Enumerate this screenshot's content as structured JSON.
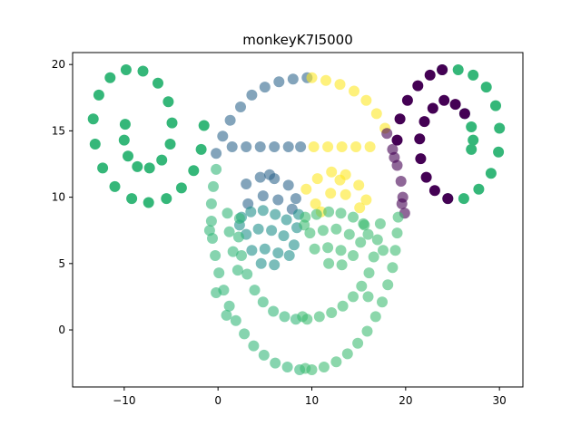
{
  "chart_data": {
    "type": "scatter",
    "title": "monkeyK7I5000",
    "xlabel": "",
    "ylabel": "",
    "xlim": [
      -15.5,
      32.5
    ],
    "ylim": [
      -4.3,
      20.9
    ],
    "xticks": [
      -10,
      0,
      10,
      20,
      30
    ],
    "yticks": [
      0,
      5,
      10,
      15,
      20
    ],
    "grid": false,
    "legend": "none",
    "colors": {
      "purple": "#440154",
      "blue": "#31688e",
      "teal": "#21918c",
      "green": "#35b779",
      "lightgreen": "#3fbc73",
      "yellow": "#fde725"
    },
    "series": [
      {
        "color_key": "green",
        "alpha": 1,
        "points": [
          [
            -1.5,
            15.4
          ],
          [
            -1.8,
            13.6
          ],
          [
            -2.6,
            12.0
          ],
          [
            -3.9,
            10.7
          ],
          [
            -5.5,
            9.9
          ],
          [
            -7.4,
            9.6
          ],
          [
            -9.2,
            9.9
          ],
          [
            -11.0,
            10.8
          ],
          [
            -12.3,
            12.2
          ],
          [
            -13.1,
            14.0
          ],
          [
            -13.3,
            15.9
          ],
          [
            -12.7,
            17.7
          ],
          [
            -11.5,
            19.0
          ],
          [
            -9.8,
            19.6
          ],
          [
            -8.0,
            19.5
          ],
          [
            -6.4,
            18.6
          ],
          [
            -5.3,
            17.2
          ],
          [
            -4.9,
            15.6
          ],
          [
            -5.1,
            14.0
          ],
          [
            -6.0,
            12.8
          ],
          [
            -7.3,
            12.2
          ],
          [
            -8.6,
            12.3
          ],
          [
            -9.6,
            13.1
          ],
          [
            -10.0,
            14.3
          ],
          [
            -9.9,
            15.5
          ],
          [
            23.9,
            19.6
          ],
          [
            25.6,
            19.6
          ],
          [
            27.2,
            19.2
          ],
          [
            28.6,
            18.3
          ],
          [
            29.6,
            16.9
          ],
          [
            30.0,
            15.2
          ],
          [
            29.9,
            13.4
          ],
          [
            29.1,
            11.8
          ],
          [
            27.8,
            10.6
          ],
          [
            26.2,
            9.9
          ],
          [
            24.5,
            9.9
          ],
          [
            26.3,
            16.3
          ],
          [
            27.0,
            15.3
          ],
          [
            27.2,
            14.3
          ],
          [
            27.0,
            13.6
          ]
        ]
      },
      {
        "color_key": "purple",
        "alpha": 1,
        "points": [
          [
            19.1,
            14.3
          ],
          [
            19.4,
            15.9
          ],
          [
            20.2,
            17.3
          ],
          [
            21.3,
            18.4
          ],
          [
            22.6,
            19.2
          ],
          [
            23.9,
            19.6
          ],
          [
            24.5,
            9.9
          ],
          [
            23.1,
            10.5
          ],
          [
            22.2,
            11.5
          ],
          [
            21.6,
            12.9
          ],
          [
            21.5,
            14.4
          ],
          [
            22.0,
            15.7
          ],
          [
            22.9,
            16.7
          ],
          [
            24.1,
            17.3
          ],
          [
            25.3,
            17.0
          ],
          [
            26.3,
            16.3
          ]
        ]
      },
      {
        "color_key": "blue",
        "alpha": 0.6,
        "points": [
          [
            9.5,
            19.0
          ],
          [
            8.0,
            18.9
          ],
          [
            6.5,
            18.7
          ],
          [
            5.0,
            18.3
          ],
          [
            3.6,
            17.7
          ],
          [
            2.4,
            16.8
          ],
          [
            1.3,
            15.8
          ],
          [
            0.5,
            14.6
          ],
          [
            -0.2,
            13.3
          ],
          [
            1.5,
            13.8
          ],
          [
            3.0,
            13.8
          ],
          [
            4.5,
            13.8
          ],
          [
            6.0,
            13.8
          ],
          [
            7.5,
            13.8
          ],
          [
            8.8,
            13.8
          ],
          [
            3.0,
            11.0
          ],
          [
            4.5,
            11.5
          ],
          [
            6.0,
            11.4
          ],
          [
            7.5,
            10.9
          ],
          [
            8.3,
            9.9
          ],
          [
            3.2,
            9.5
          ],
          [
            4.8,
            10.1
          ],
          [
            6.4,
            9.8
          ],
          [
            7.9,
            9.1
          ],
          [
            5.5,
            11.7
          ]
        ]
      },
      {
        "color_key": "yellow",
        "alpha": 0.6,
        "points": [
          [
            10.0,
            19.0
          ],
          [
            11.5,
            18.8
          ],
          [
            13.0,
            18.5
          ],
          [
            14.5,
            18.0
          ],
          [
            15.8,
            17.3
          ],
          [
            16.9,
            16.3
          ],
          [
            17.8,
            15.2
          ],
          [
            10.2,
            13.8
          ],
          [
            11.7,
            13.8
          ],
          [
            13.2,
            13.8
          ],
          [
            14.7,
            13.8
          ],
          [
            16.2,
            13.8
          ],
          [
            10.6,
            11.4
          ],
          [
            12.1,
            11.9
          ],
          [
            13.6,
            11.7
          ],
          [
            15.0,
            10.9
          ],
          [
            15.8,
            9.8
          ],
          [
            10.4,
            9.5
          ],
          [
            12.0,
            10.3
          ],
          [
            13.6,
            10.2
          ],
          [
            15.1,
            9.2
          ],
          [
            9.4,
            10.6
          ],
          [
            11.0,
            8.9
          ],
          [
            13.0,
            11.3
          ]
        ]
      },
      {
        "color_key": "purple",
        "alpha": 0.6,
        "points": [
          [
            18.0,
            14.8
          ],
          [
            18.6,
            13.6
          ],
          [
            19.1,
            12.4
          ],
          [
            19.5,
            11.2
          ],
          [
            19.7,
            10.0
          ],
          [
            19.9,
            8.8
          ],
          [
            19.6,
            9.5
          ],
          [
            18.8,
            13.0
          ]
        ]
      },
      {
        "color_key": "teal",
        "alpha": 0.6,
        "points": [
          [
            2.5,
            8.5
          ],
          [
            3.5,
            8.9
          ],
          [
            4.8,
            9.0
          ],
          [
            6.1,
            8.7
          ],
          [
            7.3,
            8.3
          ],
          [
            8.4,
            7.7
          ],
          [
            3.0,
            7.2
          ],
          [
            4.3,
            7.6
          ],
          [
            5.7,
            7.5
          ],
          [
            7.0,
            7.1
          ],
          [
            8.1,
            6.4
          ],
          [
            3.6,
            6.0
          ],
          [
            5.0,
            6.1
          ],
          [
            6.4,
            5.8
          ],
          [
            7.6,
            5.6
          ],
          [
            4.6,
            5.0
          ],
          [
            6.0,
            4.9
          ],
          [
            2.3,
            7.9
          ],
          [
            8.6,
            8.7
          ]
        ]
      },
      {
        "color_key": "lightgreen",
        "alpha": 0.6,
        "points": [
          [
            9.3,
            8.5
          ],
          [
            10.5,
            8.7
          ],
          [
            11.8,
            8.9
          ],
          [
            13.1,
            8.8
          ],
          [
            14.4,
            8.5
          ],
          [
            15.5,
            8.0
          ],
          [
            16.0,
            7.2
          ],
          [
            9.8,
            7.3
          ],
          [
            11.2,
            7.5
          ],
          [
            12.6,
            7.6
          ],
          [
            14.0,
            7.2
          ],
          [
            15.2,
            6.6
          ],
          [
            10.3,
            6.1
          ],
          [
            11.7,
            6.2
          ],
          [
            13.1,
            6.0
          ],
          [
            14.4,
            5.6
          ],
          [
            11.8,
            5.0
          ],
          [
            13.2,
            4.9
          ],
          [
            15.6,
            7.9
          ],
          [
            9.2,
            7.9
          ]
        ]
      },
      {
        "color_key": "green",
        "alpha": 0.6,
        "points": [
          [
            -0.2,
            12.1
          ],
          [
            -0.5,
            10.8
          ],
          [
            -0.7,
            9.5
          ],
          [
            -0.7,
            8.2
          ],
          [
            -0.6,
            6.9
          ],
          [
            -0.3,
            5.6
          ],
          [
            0.1,
            4.3
          ],
          [
            0.6,
            3.0
          ],
          [
            1.2,
            1.8
          ],
          [
            1.9,
            0.7
          ],
          [
            2.8,
            -0.3
          ],
          [
            3.8,
            -1.2
          ],
          [
            4.9,
            -1.9
          ],
          [
            6.1,
            -2.5
          ],
          [
            7.4,
            -2.8
          ],
          [
            8.7,
            -3.0
          ],
          [
            2.3,
            8.4
          ],
          [
            2.2,
            7.0
          ],
          [
            2.5,
            5.6
          ],
          [
            3.1,
            4.2
          ],
          [
            3.9,
            3.0
          ],
          [
            4.8,
            2.1
          ],
          [
            5.9,
            1.4
          ],
          [
            7.1,
            1.0
          ],
          [
            8.3,
            0.8
          ],
          [
            1.0,
            8.8
          ],
          [
            1.2,
            7.4
          ],
          [
            1.6,
            5.9
          ],
          [
            2.1,
            4.5
          ],
          [
            -0.9,
            7.5
          ],
          [
            -0.2,
            2.8
          ],
          [
            0.9,
            1.1
          ]
        ]
      },
      {
        "color_key": "lightgreen",
        "alpha": 0.6,
        "points": [
          [
            10.0,
            -3.0
          ],
          [
            11.3,
            -2.8
          ],
          [
            12.6,
            -2.4
          ],
          [
            13.8,
            -1.8
          ],
          [
            14.9,
            -1.0
          ],
          [
            15.9,
            -0.1
          ],
          [
            16.8,
            1.0
          ],
          [
            17.5,
            2.1
          ],
          [
            18.1,
            3.4
          ],
          [
            18.6,
            4.7
          ],
          [
            18.9,
            6.0
          ],
          [
            19.1,
            7.3
          ],
          [
            19.2,
            8.5
          ],
          [
            9.5,
            0.8
          ],
          [
            10.8,
            1.0
          ],
          [
            12.1,
            1.3
          ],
          [
            13.3,
            1.8
          ],
          [
            14.4,
            2.5
          ],
          [
            15.3,
            3.3
          ],
          [
            16.1,
            4.3
          ],
          [
            16.6,
            5.5
          ],
          [
            17.0,
            6.8
          ],
          [
            17.3,
            8.0
          ],
          [
            9.0,
            1.0
          ],
          [
            16.0,
            2.5
          ],
          [
            17.6,
            6.0
          ],
          [
            9.3,
            -2.9
          ]
        ]
      }
    ]
  }
}
